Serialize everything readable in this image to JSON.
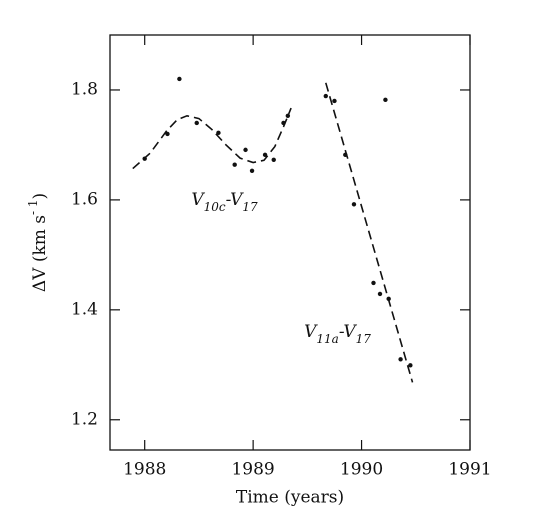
{
  "chart_data": {
    "type": "scatter",
    "x_label": "Time (years)",
    "y_label_parts": [
      "ΔV (km s",
      "- 1",
      ")"
    ],
    "xlim": [
      1987.68,
      1991
    ],
    "xticks": [
      1988,
      1989,
      1990,
      1991
    ],
    "ylim": [
      1.145,
      1.9
    ],
    "yticks": [
      1.2,
      1.4,
      1.6,
      1.8
    ],
    "color": "#111111",
    "series": [
      {
        "kind": "points",
        "x": [
          1988.0,
          1988.21,
          1988.32,
          1988.48,
          1988.68,
          1988.83,
          1988.93,
          1988.99,
          1989.11,
          1989.19,
          1989.28,
          1989.32,
          1989.67,
          1989.75,
          1989.85,
          1989.93,
          1990.11,
          1990.17,
          1990.25,
          1990.22,
          1990.36,
          1990.45
        ],
        "values": [
          1.675,
          1.72,
          1.82,
          1.74,
          1.722,
          1.664,
          1.691,
          1.653,
          1.682,
          1.673,
          1.74,
          1.753,
          1.789,
          1.78,
          1.682,
          1.592,
          1.449,
          1.429,
          1.42,
          1.782,
          1.31,
          1.299
        ]
      },
      {
        "kind": "fit",
        "x": [
          1987.89,
          1988.05,
          1988.2,
          1988.3,
          1988.39,
          1988.5,
          1988.62,
          1988.75,
          1988.88,
          1989.0,
          1989.1,
          1989.2,
          1989.28,
          1989.35
        ],
        "values": [
          1.657,
          1.685,
          1.725,
          1.746,
          1.753,
          1.748,
          1.728,
          1.7,
          1.676,
          1.668,
          1.672,
          1.697,
          1.733,
          1.767
        ]
      },
      {
        "kind": "fit",
        "x": [
          1989.67,
          1990.47
        ],
        "values": [
          1.813,
          1.268
        ]
      }
    ],
    "annotations": [
      {
        "parts": [
          "V",
          "10c",
          "-V",
          "17"
        ],
        "x": 1988.43,
        "y": 1.6
      },
      {
        "parts": [
          "V",
          "11a",
          "-V",
          "17"
        ],
        "x": 1989.47,
        "y": 1.36
      }
    ]
  }
}
